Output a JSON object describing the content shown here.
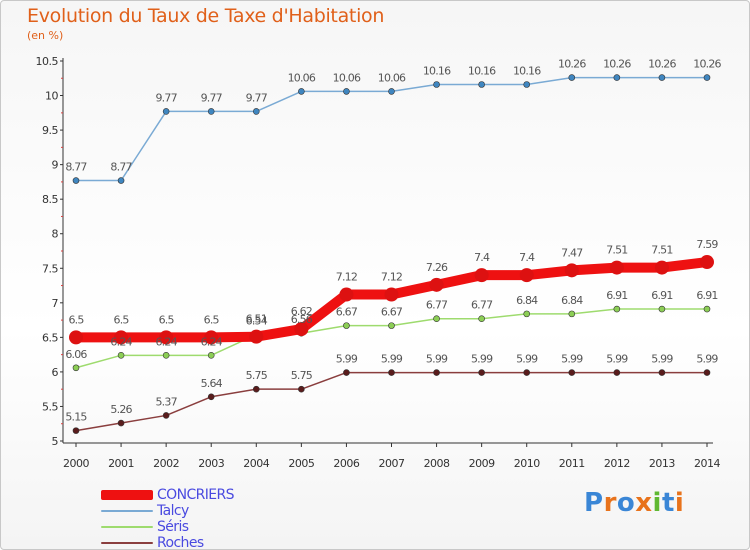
{
  "title": "Evolution du Taux de Taxe d'Habitation",
  "subtitle": "(en %)",
  "logo": {
    "letters": [
      "P",
      "r",
      "o",
      "x",
      "i",
      "t",
      "i"
    ],
    "colors": [
      "#3a86d6",
      "#e8731c",
      "#3a86d6",
      "#e8731c",
      "#5fb832",
      "#3a86d6",
      "#e8731c"
    ]
  },
  "chart_data": {
    "type": "line",
    "title": "Evolution du Taux de Taxe d'Habitation",
    "ylabel": "(en %)",
    "xlabel": "",
    "x": [
      "2000",
      "2001",
      "2002",
      "2003",
      "2004",
      "2005",
      "2006",
      "2007",
      "2008",
      "2009",
      "2010",
      "2011",
      "2012",
      "2013",
      "2014"
    ],
    "ylim": [
      5,
      10.5
    ],
    "yticks": [
      "5",
      "5.5",
      "6",
      "6.5",
      "7",
      "7.5",
      "8",
      "8.5",
      "9",
      "9.5",
      "10",
      "10.5"
    ],
    "grid": false,
    "legend": "bottom-left",
    "series": [
      {
        "name": "CONCRIERS",
        "color": "#ee1111",
        "marker": "#dd1111",
        "labelColor": "#555555",
        "bold": true,
        "values": [
          6.5,
          6.5,
          6.5,
          6.5,
          6.51,
          6.62,
          7.12,
          7.12,
          7.26,
          7.4,
          7.4,
          7.47,
          7.51,
          7.51,
          7.59
        ],
        "labels": [
          "6.5",
          "6.5",
          "6.5",
          "6.5",
          "6.51",
          "6.62",
          "7.12",
          "7.12",
          "7.26",
          "7.4",
          "7.4",
          "7.47",
          "7.51",
          "7.51",
          "7.59"
        ]
      },
      {
        "name": "Talcy",
        "color": "#7aaad4",
        "marker": "#3f86c0",
        "labelColor": "#555555",
        "bold": false,
        "values": [
          8.77,
          8.77,
          9.77,
          9.77,
          9.77,
          10.06,
          10.06,
          10.06,
          10.16,
          10.16,
          10.16,
          10.26,
          10.26,
          10.26,
          10.26
        ],
        "labels": [
          "8.77",
          "8.77",
          "9.77",
          "9.77",
          "9.77",
          "10.06",
          "10.06",
          "10.06",
          "10.16",
          "10.16",
          "10.16",
          "10.26",
          "10.26",
          "10.26",
          "10.26"
        ]
      },
      {
        "name": "Séris",
        "color": "#9edb6e",
        "marker": "#8cce55",
        "labelColor": "#555555",
        "bold": false,
        "values": [
          6.06,
          6.24,
          6.24,
          6.24,
          6.54,
          6.56,
          6.67,
          6.67,
          6.77,
          6.77,
          6.84,
          6.84,
          6.91,
          6.91,
          6.91
        ],
        "labels": [
          "6.06",
          "6.24",
          "6.24",
          "6.24",
          "6.54",
          "6.56",
          "6.67",
          "6.67",
          "6.77",
          "6.77",
          "6.84",
          "6.84",
          "6.91",
          "6.91",
          "6.91"
        ]
      },
      {
        "name": "Roches",
        "color": "#8a3e3e",
        "marker": "#5a1c1c",
        "labelColor": "#555555",
        "bold": false,
        "values": [
          5.15,
          5.26,
          5.37,
          5.64,
          5.75,
          5.75,
          5.99,
          5.99,
          5.99,
          5.99,
          5.99,
          5.99,
          5.99,
          5.99,
          5.99
        ],
        "labels": [
          "5.15",
          "5.26",
          "5.37",
          "5.64",
          "5.75",
          "5.75",
          "5.99",
          "5.99",
          "5.99",
          "5.99",
          "5.99",
          "5.99",
          "5.99",
          "5.99",
          "5.99"
        ]
      }
    ]
  }
}
